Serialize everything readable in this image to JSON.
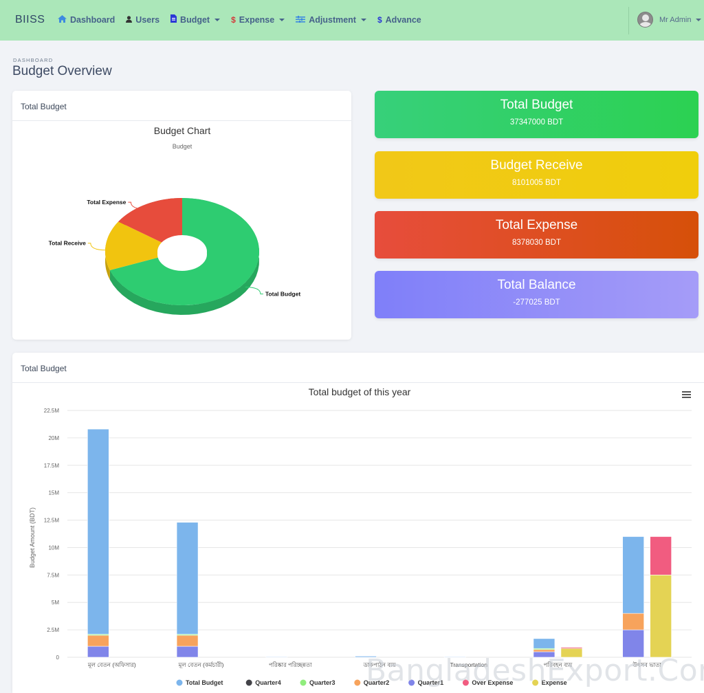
{
  "navbar": {
    "brand": "BIISS",
    "items": [
      {
        "label": "Dashboard",
        "icon": "home-icon",
        "has_caret": false
      },
      {
        "label": "Users",
        "icon": "user-icon",
        "has_caret": false
      },
      {
        "label": "Budget",
        "icon": "file-icon",
        "has_caret": true
      },
      {
        "label": "Expense",
        "icon": "dollar-icon",
        "has_caret": true
      },
      {
        "label": "Adjustment",
        "icon": "sliders-icon",
        "has_caret": true
      },
      {
        "label": "Advance",
        "icon": "dollar-icon",
        "has_caret": false
      }
    ],
    "user_name": "Mr Admin"
  },
  "page": {
    "breadcrumb": "DASHBOARD",
    "title": "Budget Overview"
  },
  "budget_card": {
    "header": "Total Budget"
  },
  "stats": [
    {
      "title": "Total Budget",
      "value": "37347000 BDT",
      "color": "#2ecc71"
    },
    {
      "title": "Budget Receive",
      "value": "8101005 BDT",
      "color": "#f1c40f"
    },
    {
      "title": "Total Expense",
      "value": "8378030 BDT",
      "color": "#e74c3c"
    },
    {
      "title": "Total Balance",
      "value": "-277025 BDT",
      "color": "#8e8cfb"
    }
  ],
  "bar_card": {
    "header": "Total Budget"
  },
  "watermark": "BangladeshExport.Com",
  "chart_data": [
    {
      "type": "pie",
      "title": "Budget Chart",
      "subtitle": "Budget",
      "donut": true,
      "three_d": true,
      "slices": [
        {
          "label": "Total Budget",
          "value": 37347000,
          "color": "#2ecc71"
        },
        {
          "label": "Total Receive",
          "value": 8101005,
          "color": "#f1c40f"
        },
        {
          "label": "Total Expense",
          "value": 8378030,
          "color": "#e74c3c"
        }
      ]
    },
    {
      "type": "bar",
      "stacked": true,
      "title": "Total budget of this year",
      "ylabel": "Budget Amount (BDT)",
      "ylim": [
        0,
        22500000
      ],
      "yticks": [
        {
          "value": 0,
          "label": "0"
        },
        {
          "value": 2500000,
          "label": "2.5M"
        },
        {
          "value": 5000000,
          "label": "5M"
        },
        {
          "value": 7500000,
          "label": "7.5M"
        },
        {
          "value": 10000000,
          "label": "10M"
        },
        {
          "value": 12500000,
          "label": "12.5M"
        },
        {
          "value": 15000000,
          "label": "15M"
        },
        {
          "value": 17500000,
          "label": "17.5M"
        },
        {
          "value": 20000000,
          "label": "20M"
        },
        {
          "value": 22500000,
          "label": "22.5M"
        }
      ],
      "grid": true,
      "legend_position": "bottom",
      "categories": [
        "মূল বেতন (অফিসার)",
        "মূল বেতন (কর্মচারী)",
        "পরিষ্কার পরিচ্ছন্নতা",
        "ডাকপাঠন ব্যয়",
        "Transportation",
        "পরিবহন ব্যয়",
        "উৎসব ভাতা"
      ],
      "series": [
        {
          "name": "Total Budget",
          "color": "#7cb5ec",
          "stack": "budget",
          "values": [
            18700000,
            10200000,
            50000,
            100000,
            50000,
            900000,
            7000000
          ]
        },
        {
          "name": "Quarter4",
          "color": "#434348",
          "stack": "budget",
          "values": [
            0,
            0,
            0,
            0,
            0,
            0,
            0
          ]
        },
        {
          "name": "Quarter3",
          "color": "#90ed7d",
          "stack": "budget",
          "values": [
            100000,
            100000,
            0,
            0,
            0,
            100000,
            0
          ]
        },
        {
          "name": "Quarter2",
          "color": "#f7a35c",
          "stack": "budget",
          "values": [
            1000000,
            1000000,
            0,
            0,
            0,
            200000,
            1500000
          ]
        },
        {
          "name": "Quarter1",
          "color": "#8085e9",
          "stack": "budget",
          "values": [
            1000000,
            1000000,
            0,
            0,
            0,
            500000,
            2500000
          ]
        },
        {
          "name": "Over Expense",
          "color": "#f15c80",
          "stack": "expense",
          "values": [
            0,
            0,
            0,
            0,
            0,
            100000,
            3500000
          ]
        },
        {
          "name": "Expense",
          "color": "#e4d354",
          "stack": "expense",
          "values": [
            0,
            0,
            0,
            0,
            0,
            800000,
            7500000
          ]
        }
      ]
    }
  ]
}
